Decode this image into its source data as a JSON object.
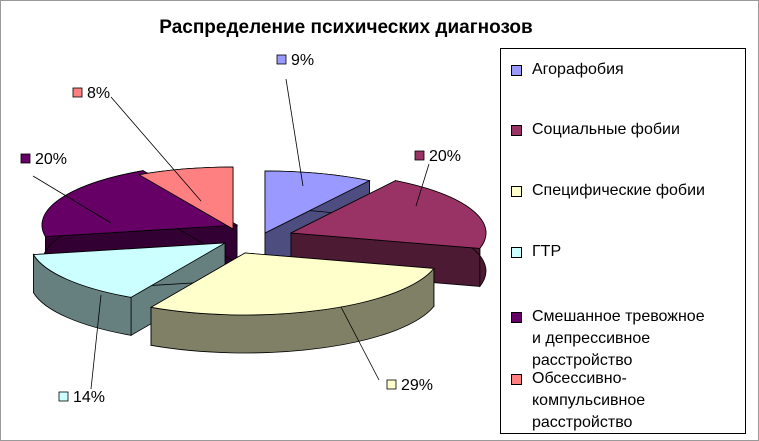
{
  "chart_data": {
    "type": "pie",
    "title": "Распределение психических диагнозов",
    "legend_position": "right",
    "slices": [
      {
        "label": "Агорафобия",
        "value": 9,
        "display": "9%",
        "color": "#9999ff",
        "side_color": "#4d4d80"
      },
      {
        "label": "Социальные фобии",
        "value": 20,
        "display": "20%",
        "color": "#993366",
        "side_color": "#4d1a33"
      },
      {
        "label": "Специфические фобии",
        "value": 29,
        "display": "29%",
        "color": "#ffffcc",
        "side_color": "#808066"
      },
      {
        "label": "ГТР",
        "value": 14,
        "display": "14%",
        "color": "#ccffff",
        "side_color": "#668080"
      },
      {
        "label": "Смешанное тревожное и депрессивное расстройство",
        "value": 20,
        "display": "20%",
        "color": "#660066",
        "side_color": "#330033"
      },
      {
        "label": "Обсессивно-компульсивное расстройство",
        "value": 8,
        "display": "8%",
        "color": "#ff8080",
        "side_color": "#804040"
      }
    ]
  },
  "legend": {
    "items": [
      {
        "lines": [
          "Агорафобия"
        ],
        "color": "#9999ff"
      },
      {
        "lines": [
          "Социальные фобии"
        ],
        "color": "#993366"
      },
      {
        "lines": [
          "Специфические фобии"
        ],
        "color": "#ffffcc"
      },
      {
        "lines": [
          "ГТР"
        ],
        "color": "#ccffff"
      },
      {
        "lines": [
          "Смешанное тревожное",
          "и депрессивное",
          "расстройство"
        ],
        "color": "#660066"
      },
      {
        "lines": [
          "Обсессивно-",
          "компульсивное",
          "расстройство"
        ],
        "color": "#ff8080"
      }
    ]
  }
}
